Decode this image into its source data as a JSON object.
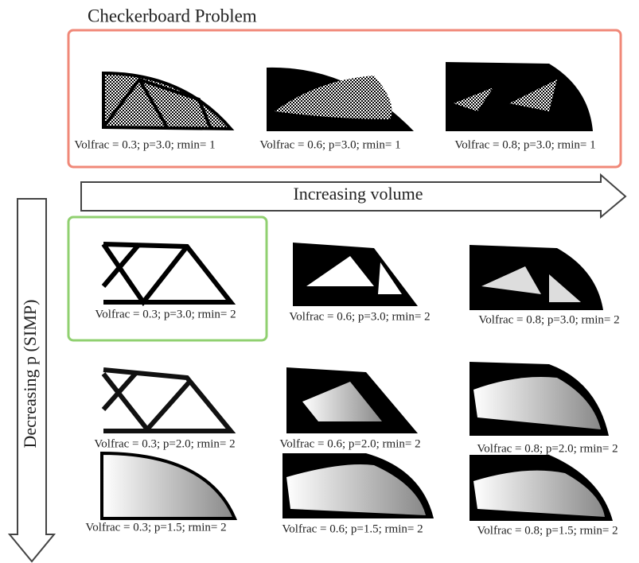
{
  "title": "Checkerboard Problem",
  "horizontal_arrow": "Increasing volume",
  "vertical_arrow": "Decreasing p (SIMP)",
  "checkerboard_row": [
    "Volfrac = 0.3; p=3.0; rmin= 1",
    "Volfrac = 0.6; p=3.0; rmin= 1",
    "Volfrac = 0.8; p=3.0; rmin= 1"
  ],
  "rows": [
    [
      "Volfrac = 0.3; p=3.0; rmin= 2",
      "Volfrac = 0.6; p=3.0; rmin= 2",
      "Volfrac = 0.8; p=3.0; rmin= 2"
    ],
    [
      "Volfrac = 0.3; p=2.0; rmin= 2",
      "Volfrac = 0.6; p=2.0; rmin= 2",
      "Volfrac = 0.8; p=2.0; rmin= 2"
    ],
    [
      "Volfrac = 0.3; p=1.5; rmin= 2",
      "Volfrac = 0.6; p=1.5; rmin= 2",
      "Volfrac = 0.8; p=1.5; rmin= 2"
    ]
  ]
}
